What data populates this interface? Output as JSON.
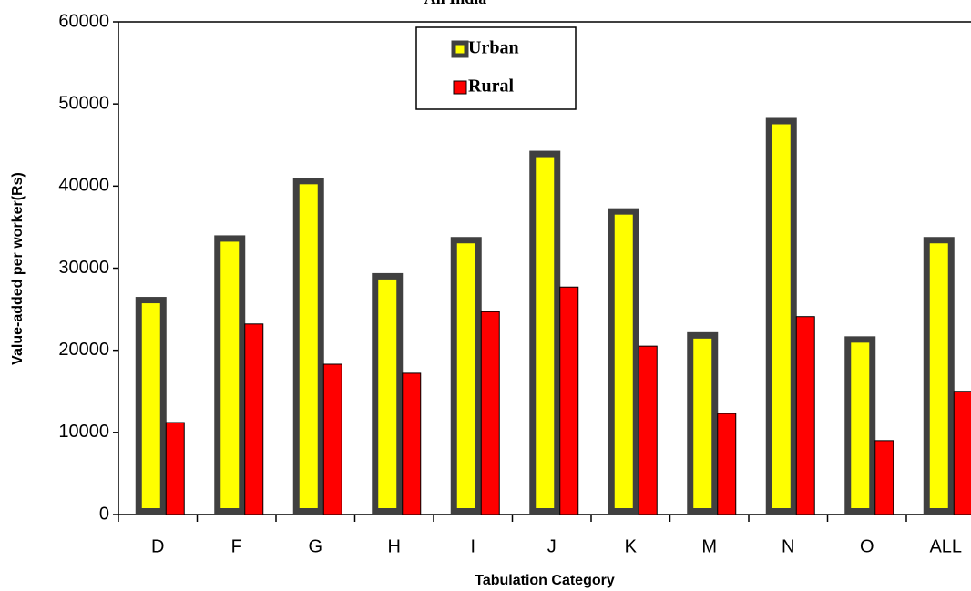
{
  "chart_data": {
    "type": "bar",
    "title": "All India",
    "x_label": "Tabulation Category",
    "y_label": "Value-added per worker(Rs)",
    "categories": [
      "D",
      "F",
      "G",
      "H",
      "I",
      "J",
      "K",
      "M",
      "N",
      "O",
      "ALL"
    ],
    "series": [
      {
        "name": "Urban",
        "color": "#ffff00",
        "values": [
          26500,
          34000,
          41000,
          29400,
          33800,
          44300,
          37300,
          22200,
          48300,
          21700,
          33800
        ]
      },
      {
        "name": "Rural",
        "color": "#ff0000",
        "values": [
          11200,
          23200,
          18300,
          17200,
          24700,
          27700,
          20500,
          12300,
          24100,
          9000,
          15000
        ]
      }
    ],
    "ylim": [
      0,
      60000
    ],
    "yticks": [
      0,
      10000,
      20000,
      30000,
      40000,
      50000,
      60000
    ]
  }
}
